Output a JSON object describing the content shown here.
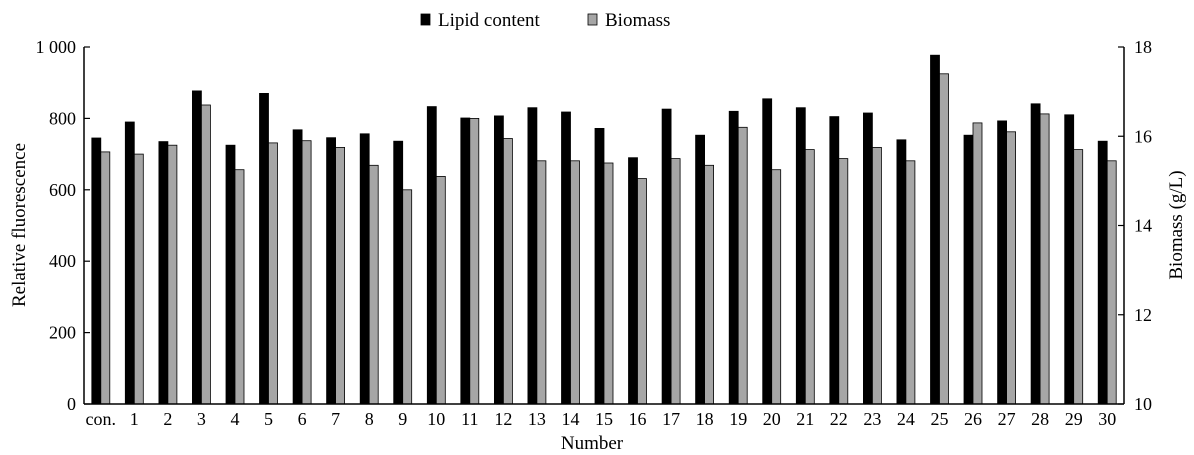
{
  "chart_data": {
    "type": "bar",
    "categories": [
      "con.",
      "1",
      "2",
      "3",
      "4",
      "5",
      "6",
      "7",
      "8",
      "9",
      "10",
      "11",
      "12",
      "13",
      "14",
      "15",
      "16",
      "17",
      "18",
      "19",
      "20",
      "21",
      "22",
      "23",
      "24",
      "25",
      "26",
      "27",
      "28",
      "29",
      "30"
    ],
    "series": [
      {
        "name": "Lipid content",
        "axis": "left",
        "color": "#000000",
        "values": [
          745,
          790,
          735,
          877,
          725,
          870,
          768,
          746,
          757,
          736,
          833,
          801,
          807,
          830,
          818,
          772,
          690,
          826,
          753,
          820,
          855,
          830,
          805,
          815,
          740,
          977,
          753,
          793,
          841,
          810,
          736
        ]
      },
      {
        "name": "Biomass",
        "axis": "right",
        "color": "#a6a6a6",
        "values": [
          15.65,
          15.6,
          15.8,
          16.7,
          15.25,
          15.85,
          15.9,
          15.75,
          15.35,
          14.8,
          15.1,
          16.4,
          15.95,
          15.45,
          15.45,
          15.4,
          15.05,
          15.5,
          15.35,
          16.2,
          15.25,
          15.7,
          15.5,
          15.75,
          15.45,
          17.4,
          16.3,
          16.1,
          16.5,
          15.7,
          15.45
        ]
      }
    ],
    "xlabel": "Number",
    "ylabel": "Relative fluorescence",
    "y2label": "Biomass (g/L)",
    "ylim": [
      0,
      1000
    ],
    "y2lim": [
      10,
      18
    ],
    "yticks": [
      "0",
      "200",
      "400",
      "600",
      "800",
      "1 000"
    ],
    "y2ticks": [
      "10",
      "12",
      "14",
      "16",
      "18"
    ],
    "grid": false,
    "legend_position": "top-center"
  }
}
